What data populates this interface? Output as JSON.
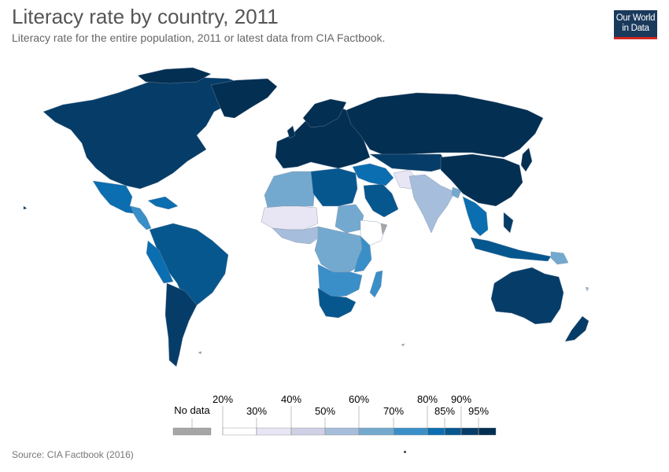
{
  "header": {
    "title": "Literacy rate by country, 2011",
    "subtitle": "Literacy rate for the entire population, 2011 or latest data from CIA Factbook.",
    "logo_line1": "Our World",
    "logo_line2": "in Data"
  },
  "legend": {
    "no_data_label": "No data",
    "thresholds": [
      "20%",
      "30%",
      "40%",
      "50%",
      "60%",
      "70%",
      "80%",
      "85%",
      "90%",
      "95%"
    ],
    "colors": [
      "#ffffff",
      "#e8e6f4",
      "#cfd0e6",
      "#a6bddb",
      "#74a9cf",
      "#3a8fc8",
      "#0b6eb0",
      "#07578f",
      "#063d68",
      "#032f52"
    ],
    "no_data_color": "#a6a6a6"
  },
  "footer": {
    "source": "Source: CIA Factbook (2016)"
  },
  "map": {
    "ocean_color": "#ffffff",
    "border_color": "#8a9bb0"
  }
}
